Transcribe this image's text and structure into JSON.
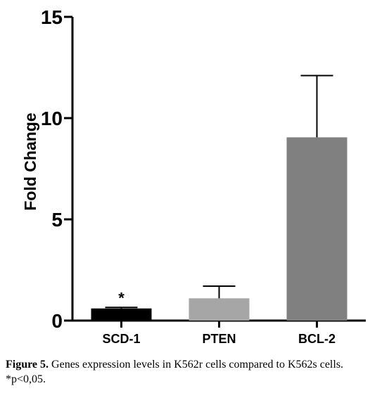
{
  "chart_data": {
    "type": "bar",
    "categories": [
      "SCD-1",
      "PTEN",
      "BCL-2"
    ],
    "values": [
      0.6,
      1.1,
      9.05
    ],
    "error_upper": [
      0.65,
      1.7,
      12.1
    ],
    "colors": [
      "#000000",
      "#a6a6a6",
      "#808080"
    ],
    "significance": [
      "*",
      "",
      ""
    ],
    "ylabel": "Fold Change",
    "ylim": [
      0,
      15
    ],
    "yticks": [
      0,
      5,
      10,
      15
    ],
    "grid": false,
    "legend": "none"
  },
  "caption": {
    "label": "Figure 5.",
    "text": " Genes expression levels in K562r cells compared to K562s cells. *p<0,05."
  }
}
